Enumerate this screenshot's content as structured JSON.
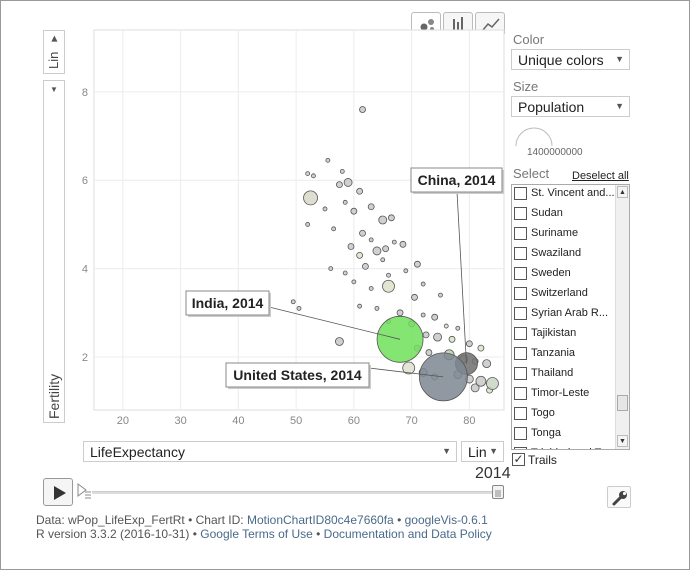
{
  "chart_data": {
    "type": "scatter",
    "xlabel": "LifeExpectancy",
    "ylabel": "Fertility",
    "xticks": [
      20,
      30,
      40,
      50,
      60,
      70,
      80
    ],
    "yticks": [
      2,
      4,
      6,
      8
    ],
    "xlim": [
      15,
      86
    ],
    "ylim": [
      0.8,
      9.4
    ],
    "year": "2014",
    "points": [
      {
        "x": 61.5,
        "y": 7.6,
        "r": 3,
        "color": "#c8c8c8"
      },
      {
        "x": 55.5,
        "y": 6.45,
        "r": 2,
        "color": "#c8c8c8"
      },
      {
        "x": 52,
        "y": 6.15,
        "r": 2,
        "color": "#c8c8c8"
      },
      {
        "x": 53,
        "y": 6.1,
        "r": 2,
        "color": "#c8c8c8"
      },
      {
        "x": 58,
        "y": 6.2,
        "r": 2,
        "color": "#c8c8c8"
      },
      {
        "x": 57.5,
        "y": 5.9,
        "r": 3,
        "color": "#c8c8c8"
      },
      {
        "x": 59,
        "y": 5.95,
        "r": 4,
        "color": "#c8c8c8"
      },
      {
        "x": 52.5,
        "y": 5.6,
        "r": 7,
        "color": "#d8d8c8"
      },
      {
        "x": 61,
        "y": 5.75,
        "r": 3,
        "color": "#c8c8c8"
      },
      {
        "x": 58.5,
        "y": 5.5,
        "r": 2,
        "color": "#c8c8c8"
      },
      {
        "x": 55,
        "y": 5.35,
        "r": 2,
        "color": "#c8c8c8"
      },
      {
        "x": 60,
        "y": 5.3,
        "r": 3,
        "color": "#c8c8c8"
      },
      {
        "x": 63,
        "y": 5.4,
        "r": 3,
        "color": "#c8c8c8"
      },
      {
        "x": 65,
        "y": 5.1,
        "r": 4,
        "color": "#c8c8c8"
      },
      {
        "x": 66.5,
        "y": 5.15,
        "r": 3,
        "color": "#c8c8c8"
      },
      {
        "x": 52,
        "y": 5.0,
        "r": 2,
        "color": "#c8c8c8"
      },
      {
        "x": 56.5,
        "y": 4.9,
        "r": 2,
        "color": "#c8c8c8"
      },
      {
        "x": 61.5,
        "y": 4.8,
        "r": 3,
        "color": "#c8c8c8"
      },
      {
        "x": 63,
        "y": 4.65,
        "r": 2,
        "color": "#c8c8c8"
      },
      {
        "x": 59.5,
        "y": 4.5,
        "r": 3,
        "color": "#c8c8c8"
      },
      {
        "x": 64,
        "y": 4.4,
        "r": 4,
        "color": "#c8c8c8"
      },
      {
        "x": 65.5,
        "y": 4.45,
        "r": 3,
        "color": "#c8c8c8"
      },
      {
        "x": 67,
        "y": 4.6,
        "r": 2,
        "color": "#c8c8c8"
      },
      {
        "x": 68.5,
        "y": 4.55,
        "r": 3,
        "color": "#c8c8c8"
      },
      {
        "x": 61,
        "y": 4.3,
        "r": 3,
        "color": "#d6e6c8"
      },
      {
        "x": 65,
        "y": 4.2,
        "r": 2,
        "color": "#c8c8c8"
      },
      {
        "x": 56,
        "y": 4.0,
        "r": 2,
        "color": "#c8c8c8"
      },
      {
        "x": 58.5,
        "y": 3.9,
        "r": 2,
        "color": "#c8c8c8"
      },
      {
        "x": 62,
        "y": 4.05,
        "r": 3,
        "color": "#c8c8c8"
      },
      {
        "x": 66,
        "y": 3.85,
        "r": 2,
        "color": "#c8c8c8"
      },
      {
        "x": 69,
        "y": 3.95,
        "r": 2,
        "color": "#c8c8c8"
      },
      {
        "x": 71,
        "y": 4.1,
        "r": 3,
        "color": "#c8c8c8"
      },
      {
        "x": 60,
        "y": 3.7,
        "r": 2,
        "color": "#c8c8c8"
      },
      {
        "x": 66,
        "y": 3.6,
        "r": 6,
        "color": "#dde0c8"
      },
      {
        "x": 72,
        "y": 3.65,
        "r": 2,
        "color": "#c8c8c8"
      },
      {
        "x": 63,
        "y": 3.55,
        "r": 2,
        "color": "#c8c8c8"
      },
      {
        "x": 70.5,
        "y": 3.35,
        "r": 3,
        "color": "#c8c8c8"
      },
      {
        "x": 75,
        "y": 3.4,
        "r": 2,
        "color": "#c8c8c8"
      },
      {
        "x": 49.5,
        "y": 3.25,
        "r": 2,
        "color": "#c8c8c8"
      },
      {
        "x": 61,
        "y": 3.15,
        "r": 2,
        "color": "#c8c8c8"
      },
      {
        "x": 64,
        "y": 3.1,
        "r": 2,
        "color": "#c8c8c8"
      },
      {
        "x": 68,
        "y": 3.0,
        "r": 3,
        "color": "#c8c8c8"
      },
      {
        "x": 72,
        "y": 2.95,
        "r": 2,
        "color": "#c8c8c8"
      },
      {
        "x": 74,
        "y": 2.9,
        "r": 3,
        "color": "#c8c8c8"
      },
      {
        "x": 50.5,
        "y": 3.1,
        "r": 2,
        "color": "#c8c8c8"
      },
      {
        "x": 66,
        "y": 2.8,
        "r": 2,
        "color": "#c8c8c8"
      },
      {
        "x": 70,
        "y": 2.75,
        "r": 3,
        "color": "#c8c8c8"
      },
      {
        "x": 76,
        "y": 2.7,
        "r": 2,
        "color": "#d6e6c8"
      },
      {
        "x": 78,
        "y": 2.65,
        "r": 2,
        "color": "#c8c8c8"
      },
      {
        "x": 57.5,
        "y": 2.35,
        "r": 4,
        "color": "#c8c8c8"
      },
      {
        "x": 72.5,
        "y": 2.5,
        "r": 3,
        "color": "#c8c8c8"
      },
      {
        "x": 74.5,
        "y": 2.45,
        "r": 4,
        "color": "#c8c8c8"
      },
      {
        "x": 77,
        "y": 2.4,
        "r": 3,
        "color": "#d6e6c8"
      },
      {
        "x": 80,
        "y": 2.3,
        "r": 3,
        "color": "#c8c8c8"
      },
      {
        "x": 82,
        "y": 2.2,
        "r": 3,
        "color": "#d6e6c8"
      },
      {
        "x": 71,
        "y": 2.2,
        "r": 3,
        "color": "#c8c8c8"
      },
      {
        "x": 73,
        "y": 2.1,
        "r": 3,
        "color": "#c8c8c8"
      },
      {
        "x": 76.5,
        "y": 2.05,
        "r": 5,
        "color": "#b8cfa8"
      },
      {
        "x": 79,
        "y": 1.95,
        "r": 4,
        "color": "#c8c8c8"
      },
      {
        "x": 81,
        "y": 1.9,
        "r": 3,
        "color": "#d6e6c8"
      },
      {
        "x": 83,
        "y": 1.85,
        "r": 4,
        "color": "#c8c8c8"
      },
      {
        "x": 69.5,
        "y": 1.75,
        "r": 6,
        "color": "#e0e0d0"
      },
      {
        "x": 72,
        "y": 1.65,
        "r": 4,
        "color": "#c8c8c8"
      },
      {
        "x": 74,
        "y": 1.55,
        "r": 3,
        "color": "#d6e6c8"
      },
      {
        "x": 78,
        "y": 1.6,
        "r": 4,
        "color": "#c8c8c8"
      },
      {
        "x": 80,
        "y": 1.5,
        "r": 4,
        "color": "#c8c8c8"
      },
      {
        "x": 82,
        "y": 1.45,
        "r": 5,
        "color": "#c8c8c8"
      },
      {
        "x": 84,
        "y": 1.4,
        "r": 6,
        "color": "#c8d6c0"
      },
      {
        "x": 81,
        "y": 1.3,
        "r": 4,
        "color": "#c8c8c8"
      },
      {
        "x": 83.5,
        "y": 1.25,
        "r": 3,
        "color": "#d6e6c8"
      },
      {
        "x": 79.5,
        "y": 1.85,
        "r": 11,
        "color": "#6e6e6e"
      },
      {
        "x": 75.5,
        "y": 1.55,
        "r": 24,
        "color": "#7c8791"
      },
      {
        "x": 68,
        "y": 2.4,
        "r": 23,
        "color": "#6ee05a"
      }
    ],
    "annotations": [
      {
        "label": "China, 2014"
      },
      {
        "label": "India, 2014"
      },
      {
        "label": "United States, 2014"
      }
    ]
  },
  "axis_control": {
    "y_scale": "Lin",
    "x_scale": "Lin",
    "x_variable": "LifeExpectancy",
    "y_title": "Fertility"
  },
  "panel": {
    "color_label": "Color",
    "color_value": "Unique colors",
    "size_label": "Size",
    "size_value": "Population",
    "size_legend_value": "1400000000",
    "select_label": "Select",
    "deselect_all": "Deselect all",
    "countries": [
      "St. Vincent and...",
      "Sudan",
      "Suriname",
      "Swaziland",
      "Sweden",
      "Switzerland",
      "Syrian Arab R...",
      "Tajikistan",
      "Tanzania",
      "Thailand",
      "Timor-Leste",
      "Togo",
      "Tonga",
      "Trinidad and T..."
    ],
    "trails_label": "Trails",
    "trails_checked": true
  },
  "player": {
    "year_label": "2014"
  },
  "footer": {
    "line1_prefix": "Data: wPop_LifeExp_FertRt • Chart ID: ",
    "chart_id": "MotionChartID80c4e7660fa",
    "sep1": " • ",
    "googlevis": "googleVis-0.6.1",
    "line2_prefix": "R version 3.3.2 (2016-10-31) • ",
    "terms": "Google Terms of Use",
    "sep2": " • ",
    "docs": "Documentation and Data Policy"
  },
  "colors": {
    "india": "#6ee05a",
    "us": "#7c8791",
    "china": "#6e6e6e",
    "link": "#4a6a8a"
  }
}
